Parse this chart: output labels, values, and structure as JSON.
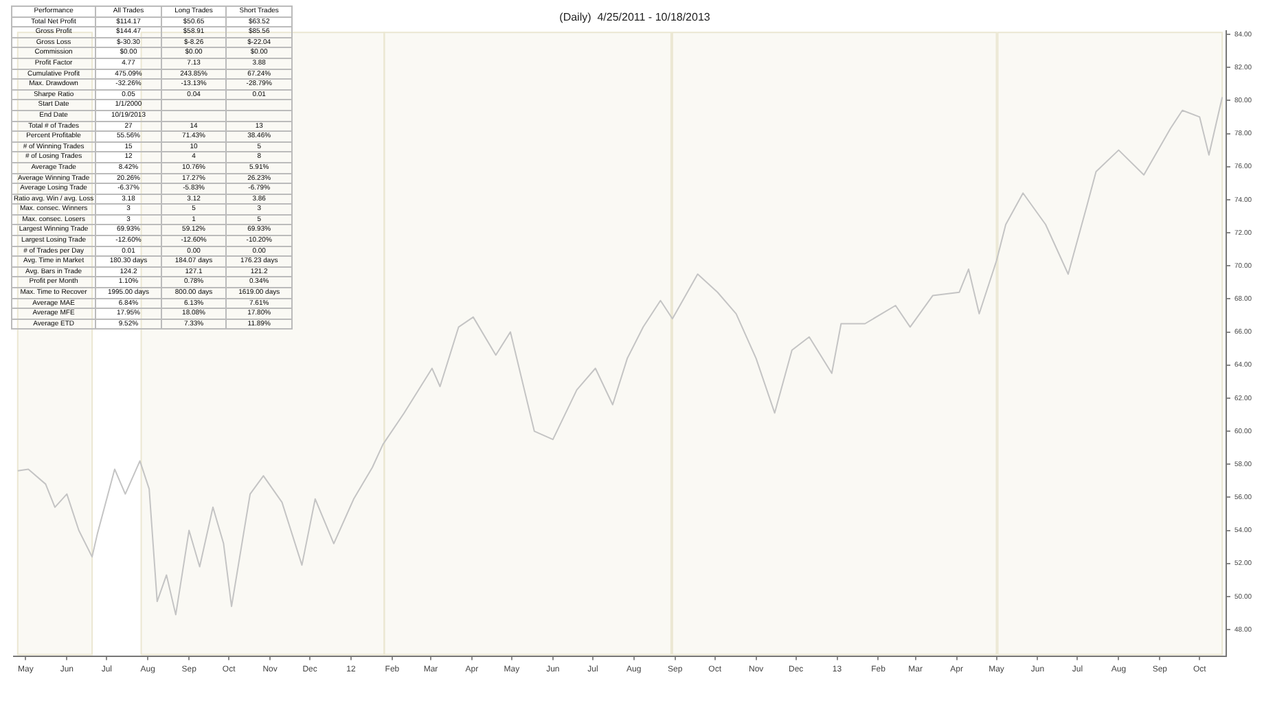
{
  "chart_data": {
    "type": "line",
    "title": "(Daily)  4/25/2011 - 10/18/2013",
    "x": [
      "2011-04-25",
      "2011-05-03",
      "2011-05-16",
      "2011-05-23",
      "2011-06-01",
      "2011-06-10",
      "2011-06-20",
      "2011-06-24",
      "2011-07-07",
      "2011-07-15",
      "2011-07-26",
      "2011-08-02",
      "2011-08-08",
      "2011-08-15",
      "2011-08-22",
      "2011-09-01",
      "2011-09-09",
      "2011-09-19",
      "2011-09-27",
      "2011-10-03",
      "2011-10-17",
      "2011-10-27",
      "2011-11-10",
      "2011-11-25",
      "2011-12-05",
      "2011-12-19",
      "2012-01-03",
      "2012-01-17",
      "2012-01-25",
      "2012-02-10",
      "2012-03-02",
      "2012-03-08",
      "2012-03-22",
      "2012-04-02",
      "2012-04-19",
      "2012-04-30",
      "2012-05-18",
      "2012-06-01",
      "2012-06-19",
      "2012-07-03",
      "2012-07-16",
      "2012-07-27",
      "2012-08-08",
      "2012-08-21",
      "2012-08-30",
      "2012-09-18",
      "2012-10-03",
      "2012-10-17",
      "2012-11-01",
      "2012-11-15",
      "2012-11-28",
      "2012-12-11",
      "2012-12-28",
      "2013-01-04",
      "2013-01-22",
      "2013-02-14",
      "2013-02-25",
      "2013-03-14",
      "2013-04-03",
      "2013-04-10",
      "2013-04-18",
      "2013-05-01",
      "2013-05-08",
      "2013-05-21",
      "2013-06-07",
      "2013-06-24",
      "2013-07-08",
      "2013-07-15",
      "2013-08-01",
      "2013-08-20",
      "2013-09-09",
      "2013-09-18",
      "2013-10-01",
      "2013-10-08",
      "2013-10-18"
    ],
    "series": [
      {
        "color": "#c4c4c4",
        "values": [
          57.6,
          57.7,
          56.8,
          55.4,
          56.2,
          54.0,
          52.4,
          53.8,
          57.7,
          56.2,
          58.2,
          56.5,
          49.7,
          51.3,
          48.9,
          54.0,
          51.8,
          55.4,
          53.2,
          49.4,
          56.2,
          57.3,
          55.7,
          51.9,
          55.9,
          53.2,
          55.9,
          57.8,
          59.2,
          61.1,
          63.8,
          62.7,
          66.3,
          66.9,
          64.6,
          66.0,
          60.0,
          59.5,
          62.5,
          63.8,
          61.6,
          64.4,
          66.3,
          67.9,
          66.8,
          69.5,
          68.4,
          67.1,
          64.4,
          61.1,
          64.9,
          65.7,
          63.5,
          66.5,
          66.5,
          67.6,
          66.3,
          68.2,
          68.4,
          69.8,
          67.1,
          70.3,
          72.5,
          74.4,
          72.5,
          69.5,
          73.6,
          75.7,
          77.0,
          75.5,
          78.3,
          79.4,
          79.0,
          76.7,
          80.2
        ]
      }
    ],
    "xlim": [
      "2011-04-22",
      "2013-10-21"
    ],
    "xticks": [
      {
        "value": "2011-05-01",
        "label": "May"
      },
      {
        "value": "2011-06-01",
        "label": "Jun"
      },
      {
        "value": "2011-07-01",
        "label": "Jul"
      },
      {
        "value": "2011-08-01",
        "label": "Aug"
      },
      {
        "value": "2011-09-01",
        "label": "Sep"
      },
      {
        "value": "2011-10-01",
        "label": "Oct"
      },
      {
        "value": "2011-11-01",
        "label": "Nov"
      },
      {
        "value": "2011-12-01",
        "label": "Dec"
      },
      {
        "value": "2012-01-01",
        "label": "12"
      },
      {
        "value": "2012-02-01",
        "label": "Feb"
      },
      {
        "value": "2012-03-01",
        "label": "Mar"
      },
      {
        "value": "2012-04-01",
        "label": "Apr"
      },
      {
        "value": "2012-05-01",
        "label": "May"
      },
      {
        "value": "2012-06-01",
        "label": "Jun"
      },
      {
        "value": "2012-07-01",
        "label": "Jul"
      },
      {
        "value": "2012-08-01",
        "label": "Aug"
      },
      {
        "value": "2012-09-01",
        "label": "Sep"
      },
      {
        "value": "2012-10-01",
        "label": "Oct"
      },
      {
        "value": "2012-11-01",
        "label": "Nov"
      },
      {
        "value": "2012-12-01",
        "label": "Dec"
      },
      {
        "value": "2013-01-01",
        "label": "13"
      },
      {
        "value": "2013-02-01",
        "label": "Feb"
      },
      {
        "value": "2013-03-01",
        "label": "Mar"
      },
      {
        "value": "2013-04-01",
        "label": "Apr"
      },
      {
        "value": "2013-05-01",
        "label": "May"
      },
      {
        "value": "2013-06-01",
        "label": "Jun"
      },
      {
        "value": "2013-07-01",
        "label": "Jul"
      },
      {
        "value": "2013-08-01",
        "label": "Aug"
      },
      {
        "value": "2013-09-01",
        "label": "Sep"
      },
      {
        "value": "2013-10-01",
        "label": "Oct"
      }
    ],
    "ylim": [
      46.4,
      84.2
    ],
    "yticks": [
      {
        "value": 48,
        "label": "48.00"
      },
      {
        "value": 50,
        "label": "50.00"
      },
      {
        "value": 52,
        "label": "52.00"
      },
      {
        "value": 54,
        "label": "54.00"
      },
      {
        "value": 56,
        "label": "56.00"
      },
      {
        "value": 58,
        "label": "58.00"
      },
      {
        "value": 60,
        "label": "60.00"
      },
      {
        "value": 62,
        "label": "62.00"
      },
      {
        "value": 64,
        "label": "64.00"
      },
      {
        "value": 66,
        "label": "66.00"
      },
      {
        "value": 68,
        "label": "68.00"
      },
      {
        "value": 70,
        "label": "70.00"
      },
      {
        "value": 72,
        "label": "72.00"
      },
      {
        "value": 74,
        "label": "74.00"
      },
      {
        "value": 76,
        "label": "76.00"
      },
      {
        "value": 78,
        "label": "78.00"
      },
      {
        "value": 80,
        "label": "80.00"
      },
      {
        "value": 82,
        "label": "82.00"
      },
      {
        "value": 84,
        "label": "84.00"
      }
    ],
    "marker": "none",
    "bands": [
      {
        "axis": "x",
        "from": "2011-04-25",
        "to": "2011-06-20",
        "color": "#ebe7d2"
      },
      {
        "axis": "x",
        "from": "2011-07-27",
        "to": "2012-01-26",
        "color": "#ebe7d2"
      },
      {
        "axis": "x",
        "from": "2012-01-26",
        "to": "2012-08-29",
        "color": "#ebe7d2"
      },
      {
        "axis": "x",
        "from": "2012-08-30",
        "to": "2013-05-01",
        "color": "#ebe7d2"
      },
      {
        "axis": "x",
        "from": "2013-05-02",
        "to": "2013-10-18",
        "color": "#ebe7d2"
      }
    ],
    "annotations": [
      "Performance",
      "All Trades",
      "Long Trades",
      "Short Trades",
      "Total Net Profit",
      "$114.17",
      "$50.65",
      "$63.52",
      "Gross Profit",
      "$144.47",
      "$58.91",
      "$85.56",
      "Gross Loss",
      "$-30.30",
      "$-8.26",
      "$-22.04",
      "Commission",
      "$0.00",
      "$0.00",
      "$0.00",
      "Profit Factor",
      "4.77",
      "7.13",
      "3.88",
      "Cumulative Profit",
      "475.09%",
      "243.85%",
      "67.24%",
      "Max. Drawdown",
      "-32.26%",
      "-13.13%",
      "-28.79%",
      "Sharpe Ratio",
      "0.05",
      "0.04",
      "0.01",
      "Start Date",
      "1/1/2000",
      null,
      null,
      "End Date",
      "10/19/2013",
      null,
      null,
      "Total # of Trades",
      "27",
      "14",
      "13",
      "Percent Profitable",
      "55.56%",
      "71.43%",
      "38.46%",
      "# of Winning Trades",
      "15",
      "10",
      "5",
      "# of Losing Trades",
      "12",
      "4",
      "8",
      "Average Trade",
      "8.42%",
      "10.76%",
      "5.91%",
      "Average Winning Trade",
      "20.26%",
      "17.27%",
      "26.23%",
      "Average Losing Trade",
      "-6.37%",
      "-5.83%",
      "-6.79%",
      "Ratio avg. Win / avg. Loss",
      "3.18",
      "3.12",
      "3.86",
      "Max. consec. Winners",
      "3",
      "5",
      "3",
      "Max. consec. Losers",
      "3",
      "1",
      "5",
      "Largest Winning Trade",
      "69.93%",
      "59.12%",
      "69.93%",
      "Largest Losing Trade",
      "-12.60%",
      "-12.60%",
      "-10.20%",
      "# of Trades per Day",
      "0.01",
      "0.00",
      "0.00",
      "Avg. Time in Market",
      "180.30 days",
      "184.07 days",
      "176.23 days",
      "Avg. Bars in Trade",
      "124.2",
      "127.1",
      "121.2",
      "Profit per Month",
      "1.10%",
      "0.78%",
      "0.34%",
      "Max. Time to Recover",
      "1995.00 days",
      "800.00 days",
      "1619.00 days",
      "Average MAE",
      "6.84%",
      "6.13%",
      "7.61%",
      "Average MFE",
      "17.95%",
      "18.08%",
      "17.80%",
      "Average ETD",
      "9.52%",
      "7.33%",
      "11.89%"
    ]
  }
}
